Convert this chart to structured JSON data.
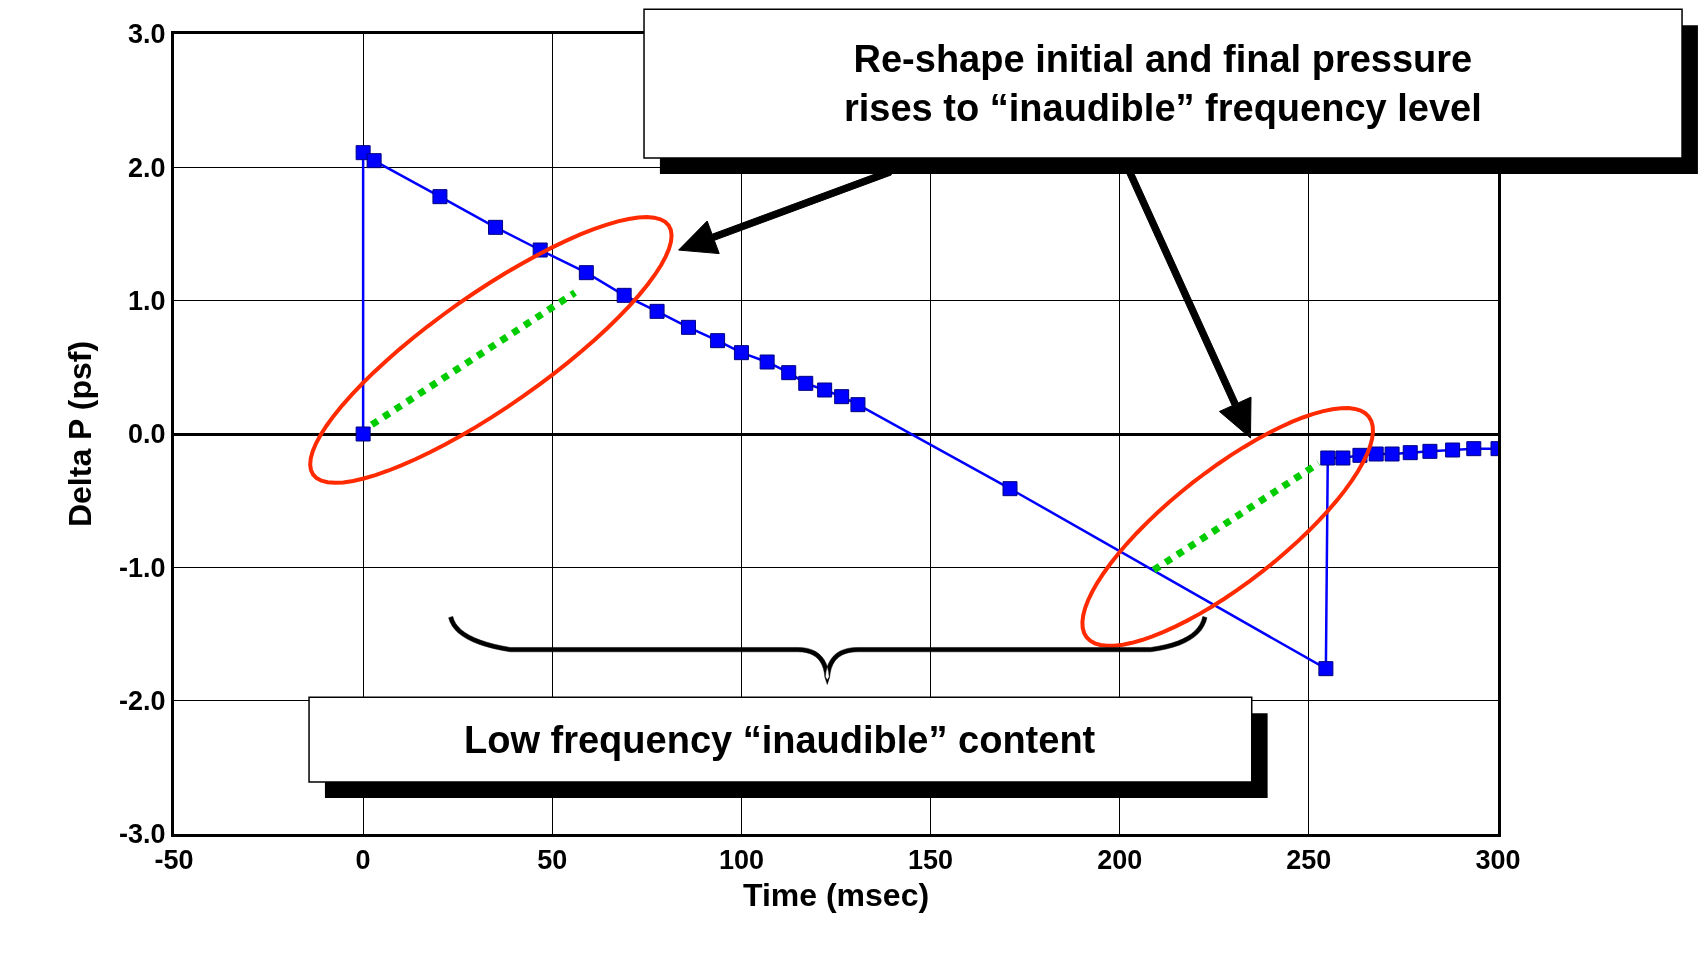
{
  "chart_data": {
    "type": "line",
    "xlabel": "Time (msec)",
    "ylabel": "Delta P (psf)",
    "xlim": [
      -50,
      300
    ],
    "xticks": [
      -50,
      0,
      50,
      100,
      150,
      200,
      250,
      300
    ],
    "ylim": [
      -3.0,
      3.0
    ],
    "yticks": [
      {
        "value": -3,
        "label": "-3.0"
      },
      {
        "value": -2,
        "label": "-2.0"
      },
      {
        "value": -1,
        "label": "-1.0"
      },
      {
        "value": 0,
        "label": "0.0"
      },
      {
        "value": 1,
        "label": "1.0"
      },
      {
        "value": 2,
        "label": "2.0"
      },
      {
        "value": 3,
        "label": "3.0"
      }
    ],
    "grid": true,
    "series": [
      {
        "color": "#0000ff",
        "marker": "square",
        "line_style": "solid",
        "x": [
          0,
          0,
          2.9,
          20.3,
          35,
          46.8,
          59,
          69,
          77.7,
          86,
          93.7,
          100,
          106.8,
          112.5,
          117,
          122,
          126.5,
          130.8,
          171,
          254.5,
          255,
          259,
          263.5,
          267.8,
          272,
          276.8,
          282,
          288,
          293.6,
          300
        ],
        "values": [
          0,
          2.11,
          2.05,
          1.78,
          1.55,
          1.38,
          1.21,
          1.04,
          0.92,
          0.8,
          0.7,
          0.61,
          0.54,
          0.46,
          0.38,
          0.33,
          0.28,
          0.22,
          -0.41,
          -1.76,
          -0.18,
          -0.18,
          -0.16,
          -0.15,
          -0.15,
          -0.14,
          -0.13,
          -0.12,
          -0.11,
          -0.11
        ]
      },
      {
        "color": "#00cc00",
        "marker": "none",
        "line_style": "dotted",
        "x": [
          2.3,
          56
        ],
        "values": [
          0.07,
          1.06
        ]
      },
      {
        "color": "#00cc00",
        "marker": "none",
        "line_style": "dotted",
        "x": [
          209,
          252.6
        ],
        "values": [
          -1.02,
          -0.22
        ]
      }
    ],
    "annotations": [
      "Re-shape initial and final pressure\nrises to “inaudible” frequency level",
      "Low frequency “inaudible” content"
    ]
  }
}
